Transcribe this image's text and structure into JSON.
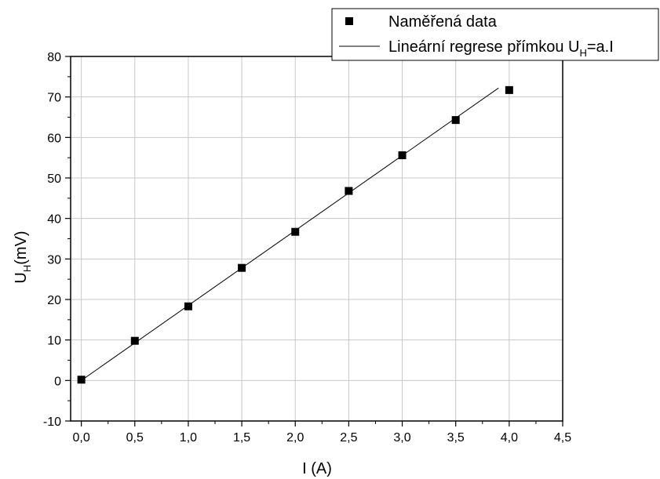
{
  "chart_data": {
    "type": "scatter",
    "xlabel": "I (A)",
    "ylabel_main": "U",
    "ylabel_sub": "H",
    "ylabel_unit": "(mV)",
    "xlim": [
      -0.1,
      4.5
    ],
    "ylim": [
      -10,
      80
    ],
    "x_ticks": [
      0.0,
      0.5,
      1.0,
      1.5,
      2.0,
      2.5,
      3.0,
      3.5,
      4.0,
      4.5
    ],
    "x_tick_labels": [
      "0,0",
      "0,5",
      "1,0",
      "1,5",
      "2,0",
      "2,5",
      "3,0",
      "3,5",
      "4,0",
      "4,5"
    ],
    "y_ticks": [
      -10,
      0,
      10,
      20,
      30,
      40,
      50,
      60,
      70,
      80
    ],
    "y_tick_labels": [
      "-10",
      "0",
      "10",
      "20",
      "30",
      "40",
      "50",
      "60",
      "70",
      "80"
    ],
    "grid": true,
    "legend_position": "top-right",
    "series": [
      {
        "name": "Naměřená data",
        "kind": "scatter",
        "marker": "square",
        "color": "#000000",
        "x": [
          0.0,
          0.5,
          1.0,
          1.5,
          2.0,
          2.5,
          3.0,
          3.5,
          4.0
        ],
        "y": [
          0.2,
          9.8,
          18.3,
          27.8,
          36.7,
          46.8,
          55.6,
          64.3,
          71.7
        ]
      },
      {
        "name_main": "Lineární regrese přímkou U",
        "name_sub": "H",
        "name_tail": "=a.I",
        "kind": "line",
        "color": "#000000",
        "x": [
          0.0,
          3.9
        ],
        "y": [
          0.0,
          72.2
        ]
      }
    ]
  }
}
